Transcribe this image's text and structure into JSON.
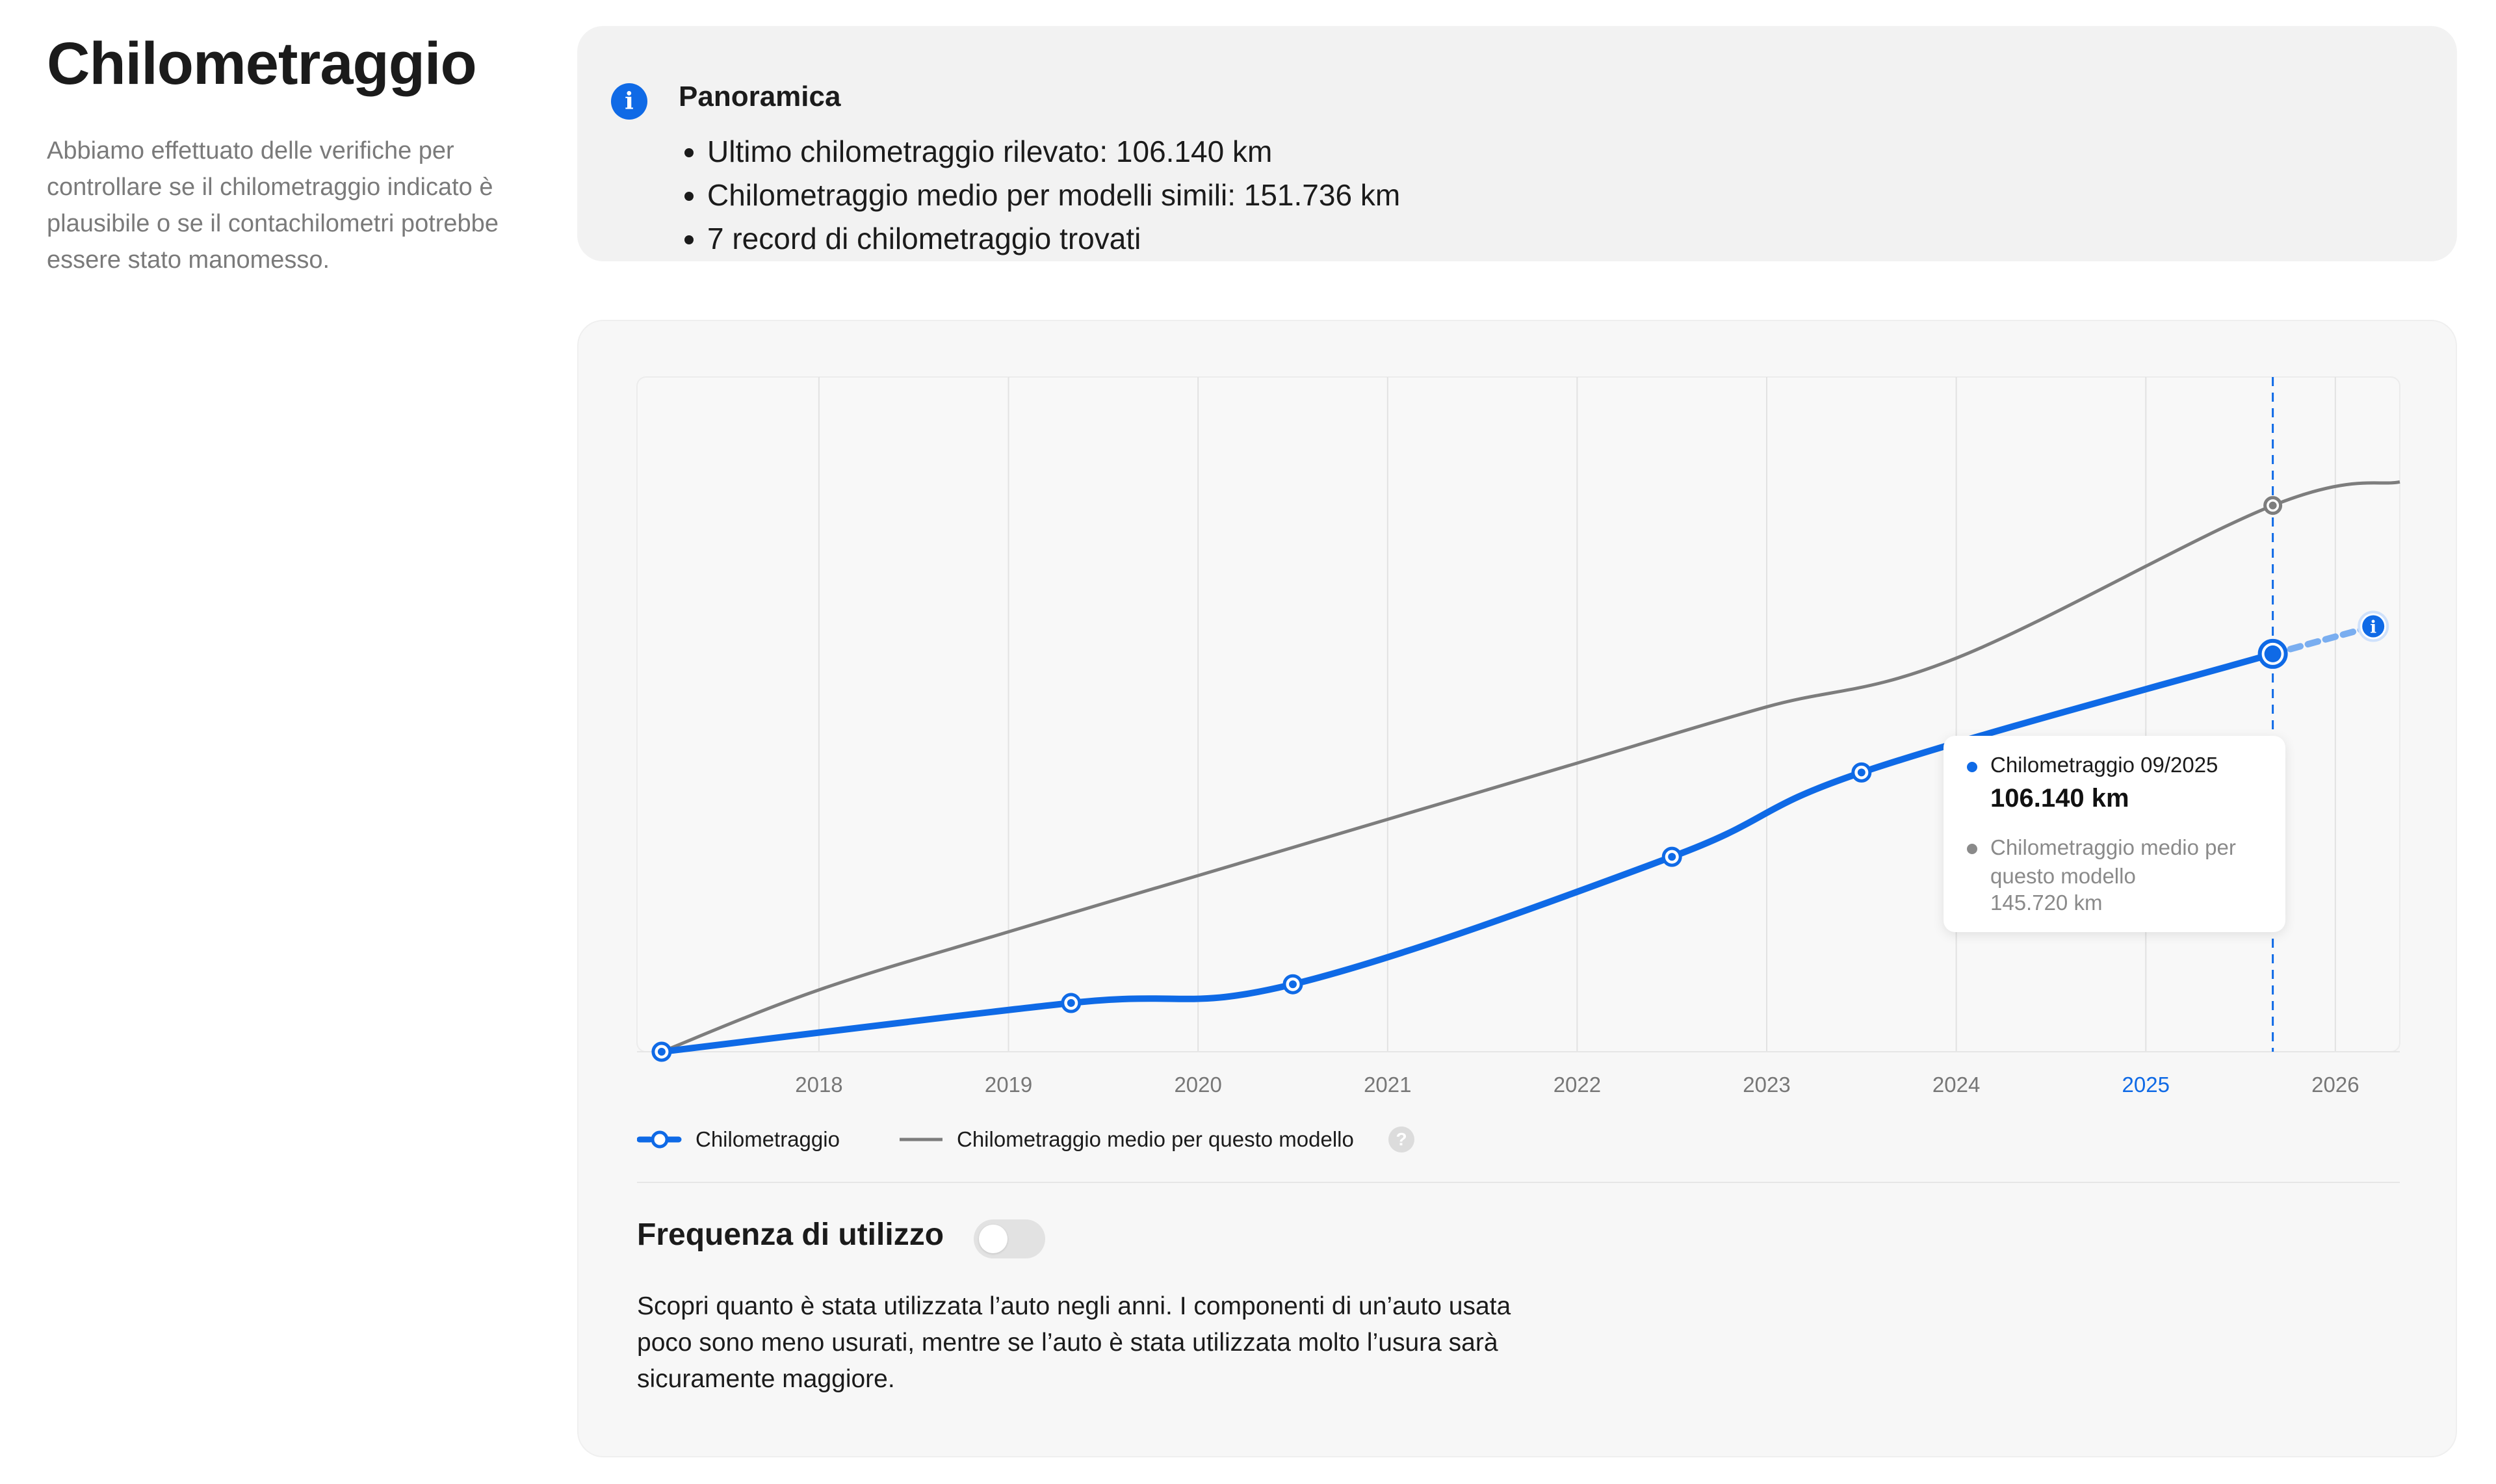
{
  "intro": {
    "title": "Chilometraggio",
    "description": "Abbiamo effettuato delle verifiche per controllare se il chilometraggio indicato è plausibile o se il contachilometri potrebbe essere stato manomesso."
  },
  "overview": {
    "title": "Panoramica",
    "items": [
      "Ultimo chilometraggio rilevato: 106.140 km",
      "Chilometraggio medio per modelli simili: 151.736 km",
      "7 record di chilometraggio trovati"
    ]
  },
  "tooltip": {
    "label1": "Chilometraggio 09/2025",
    "value1": "106.140 km",
    "label2": "Chilometraggio medio per questo modello",
    "value2": "145.720 km"
  },
  "legend": {
    "series1": "Chilometraggio",
    "series2": "Chilometraggio medio per questo modello"
  },
  "usage": {
    "title": "Frequenza di utilizzo",
    "toggle_on": false,
    "text": "Scopri quanto è stata utilizzata l’auto negli anni. I componenti di un’auto usata poco sono meno usurati, mentre se l’auto è stata utilizzata molto l’usura sarà sicuramente maggiore."
  },
  "colors": {
    "accent": "#0f6ae6",
    "average": "#7d7d7d",
    "grid": "#e2e2e2"
  },
  "chart_data": {
    "type": "line",
    "xlabel": "",
    "ylabel": "",
    "xlim": [
      2017.04,
      2026.34
    ],
    "ylim": [
      0,
      180000
    ],
    "grid": "vertical",
    "x_ticks": [
      "2018",
      "2019",
      "2020",
      "2021",
      "2022",
      "2023",
      "2024",
      "2025",
      "2026"
    ],
    "highlight_tick": "2025",
    "series": [
      {
        "name": "Chilometraggio",
        "color": "#0f6ae6",
        "points": [
          {
            "x": 2017.17,
            "y": 0
          },
          {
            "x": 2019.33,
            "y": 13000
          },
          {
            "x": 2020.5,
            "y": 18000
          },
          {
            "x": 2022.5,
            "y": 52000
          },
          {
            "x": 2023.5,
            "y": 74500
          },
          {
            "x": 2025.67,
            "y": 106140
          }
        ],
        "projection": {
          "x": 2026.2,
          "y": 113500
        }
      },
      {
        "name": "Chilometraggio medio per questo modello",
        "color": "#7d7d7d",
        "points": [
          {
            "x": 2017.17,
            "y": 0
          },
          {
            "x": 2018.0,
            "y": 16500
          },
          {
            "x": 2019.0,
            "y": 32000
          },
          {
            "x": 2020.0,
            "y": 47000
          },
          {
            "x": 2021.0,
            "y": 62000
          },
          {
            "x": 2022.0,
            "y": 77000
          },
          {
            "x": 2023.0,
            "y": 92000
          },
          {
            "x": 2024.0,
            "y": 105000
          },
          {
            "x": 2025.67,
            "y": 145720
          },
          {
            "x": 2026.34,
            "y": 152000
          }
        ],
        "markers": [
          {
            "x": 2025.67,
            "y": 145720
          }
        ]
      }
    ],
    "hover_x": 2025.67
  }
}
